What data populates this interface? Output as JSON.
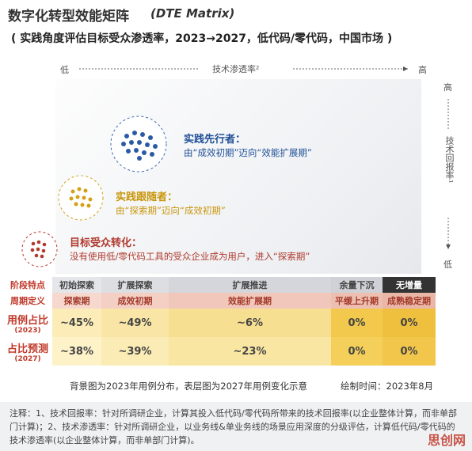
{
  "header": {
    "title": "数字化转型效能矩阵",
    "title_en": "(DTE Matrix)",
    "subtitle": "( 实践角度评估目标受众渗透率，2023→2027，低代码/零代码，中国市场 )"
  },
  "x_axis": {
    "low": "低",
    "label": "技术渗透率²",
    "high": "高"
  },
  "y_axis": {
    "high": "高",
    "label": "技术回报率¹",
    "low": "低"
  },
  "groups": [
    {
      "title": "实践先行者：",
      "text": "由“成效初期”迈向“效能扩展期”"
    },
    {
      "title": "实践跟随者：",
      "text": "由“探索期”迈向“成效初期”"
    },
    {
      "title": "目标受众转化：",
      "text": "没有使用低/零代码工具的受众企业成为用户，进入“探索期”"
    }
  ],
  "table": {
    "rows": [
      {
        "label": "阶段特点",
        "cells": [
          "初始探索",
          "扩展探索",
          "扩展推进",
          "余量下沉",
          "无增量"
        ]
      },
      {
        "label": "周期定义",
        "cells": [
          "探索期",
          "成效初期",
          "效能扩展期",
          "平缓上升期",
          "成熟稳定期"
        ]
      },
      {
        "label": "用例占比",
        "sublabel": "(2023)",
        "cells": [
          "~45%",
          "~49%",
          "~6%",
          "0%",
          "0%"
        ]
      },
      {
        "label": "占比预测",
        "sublabel": "(2027)",
        "cells": [
          "~38%",
          "~39%",
          "~23%",
          "0%",
          "0%"
        ]
      }
    ]
  },
  "caption": {
    "left": "背景图为2023年用例分布，表层图为2027年用例变化示意",
    "right": "绘制时间：2023年8月"
  },
  "footnote": "注释：1、技术回报率：针对所调研企业，计算其投入低代码/零代码所带来的技术回报率(以企业整体计算，而非单部门计算)；2、技术渗透率：针对所调研企业，以业务线&单业务线的场景应用深度的分级评估，计算低代码/零代码的技术渗透率(以企业整体计算，而非单部门计算)。",
  "watermark": "思创网"
}
